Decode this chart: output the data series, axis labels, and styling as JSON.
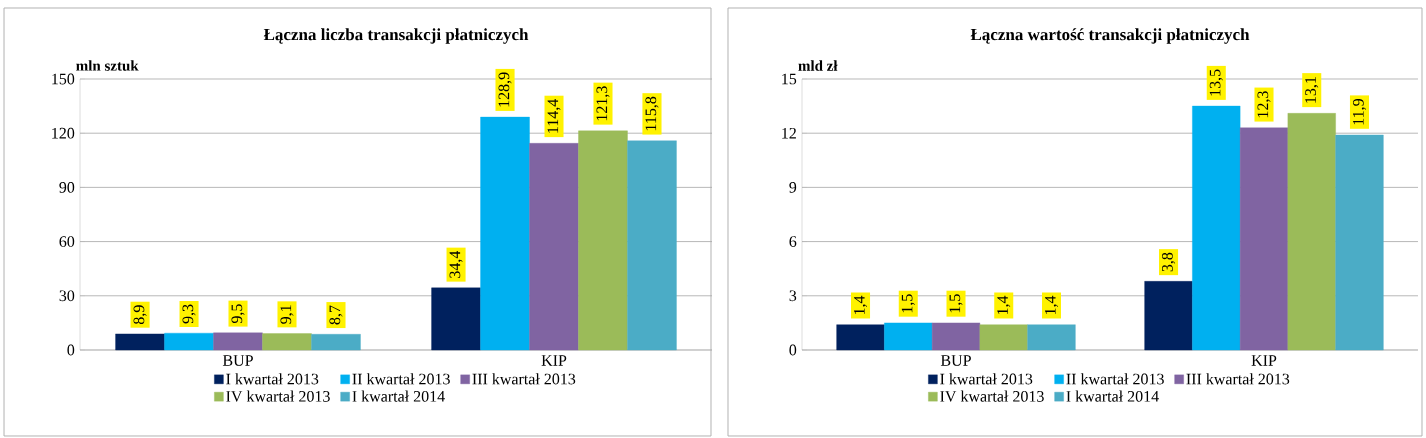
{
  "chart_data": [
    {
      "type": "bar",
      "title": "Łączna liczba transakcji płatniczych",
      "ylabel": "mln sztuk",
      "categories": [
        "BUP",
        "KIP"
      ],
      "ylim": [
        0,
        150
      ],
      "yticks": [
        0,
        30,
        60,
        90,
        120,
        150
      ],
      "grid": "y",
      "legend": "bottom",
      "series": [
        {
          "name": "I kwartał 2013",
          "color": "#00215e",
          "values": [
            8.9,
            34.4
          ],
          "value_labels": [
            "8,9",
            "34,4"
          ]
        },
        {
          "name": "II kwartał 2013",
          "color": "#00b0f0",
          "values": [
            9.3,
            128.9
          ],
          "value_labels": [
            "9,3",
            "128,9"
          ]
        },
        {
          "name": "III kwartał 2013",
          "color": "#8064a2",
          "values": [
            9.5,
            114.4
          ],
          "value_labels": [
            "9,5",
            "114,4"
          ]
        },
        {
          "name": "IV kwartał 2013",
          "color": "#9bbb59",
          "values": [
            9.1,
            121.3
          ],
          "value_labels": [
            "9,1",
            "121,3"
          ]
        },
        {
          "name": "I kwartał 2014",
          "color": "#4bacc6",
          "values": [
            8.7,
            115.8
          ],
          "value_labels": [
            "8,7",
            "115,8"
          ]
        }
      ]
    },
    {
      "type": "bar",
      "title": "Łączna wartość transakcji płatniczych",
      "ylabel": "mld zł",
      "categories": [
        "BUP",
        "KIP"
      ],
      "ylim": [
        0,
        15
      ],
      "yticks": [
        0,
        3,
        6,
        9,
        12,
        15
      ],
      "grid": "y",
      "legend": "bottom",
      "series": [
        {
          "name": "I kwartał 2013",
          "color": "#00215e",
          "values": [
            1.4,
            3.8
          ],
          "value_labels": [
            "1,4",
            "3,8"
          ]
        },
        {
          "name": "II kwartał 2013",
          "color": "#00b0f0",
          "values": [
            1.5,
            13.5
          ],
          "value_labels": [
            "1,5",
            "13,5"
          ]
        },
        {
          "name": "III kwartał 2013",
          "color": "#8064a2",
          "values": [
            1.5,
            12.3
          ],
          "value_labels": [
            "1,5",
            "12,3"
          ]
        },
        {
          "name": "IV kwartał 2013",
          "color": "#9bbb59",
          "values": [
            1.4,
            13.1
          ],
          "value_labels": [
            "1,4",
            "13,1"
          ]
        },
        {
          "name": "I kwartał 2014",
          "color": "#4bacc6",
          "values": [
            1.4,
            11.9
          ],
          "value_labels": [
            "1,4",
            "11,9"
          ]
        }
      ]
    }
  ]
}
